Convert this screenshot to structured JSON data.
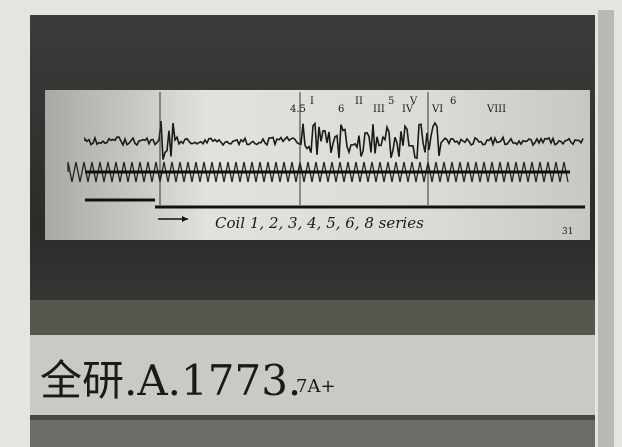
{
  "caption": "Coil 1, 2, 3, 4, 5, 6, 8 series",
  "plate_label": "全研.A.1773.",
  "plate_suffix": "7A+",
  "page_number": "31",
  "markers": [
    "4.5",
    "I",
    "6",
    "II",
    "III",
    "5",
    "IV",
    "V",
    "VI",
    "6",
    "VIII"
  ]
}
